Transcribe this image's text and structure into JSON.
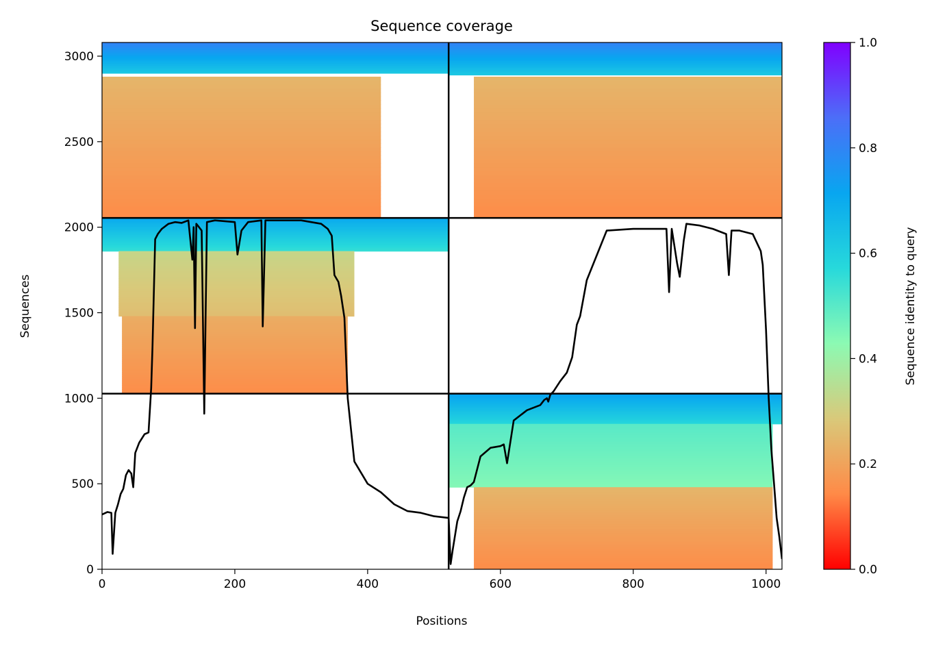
{
  "chart_data": {
    "type": "heatmap",
    "title": "Sequence coverage",
    "xlabel": "Positions",
    "ylabel": "Sequences",
    "xlim": [
      0,
      1024
    ],
    "ylim": [
      0,
      3080
    ],
    "x_ticks": [
      0,
      200,
      400,
      600,
      800,
      1000
    ],
    "y_ticks": [
      0,
      500,
      1000,
      1500,
      2000,
      2500,
      3000
    ],
    "grid": false,
    "block_dividers": {
      "x": [
        522
      ],
      "y": [
        1027,
        2054
      ]
    },
    "coverage_blocks": [
      {
        "x_range": [
          0,
          522
        ],
        "y_range": [
          2054,
          3080
        ],
        "layers": [
          {
            "x": [
              0,
              522
            ],
            "y": [
              2900,
              3080
            ],
            "identity": [
              0.62,
              0.8
            ]
          },
          {
            "x": [
              0,
              420
            ],
            "y": [
              2054,
              2880
            ],
            "identity": [
              0.15,
              0.24
            ]
          }
        ]
      },
      {
        "x_range": [
          522,
          1024
        ],
        "y_range": [
          2054,
          3080
        ],
        "layers": [
          {
            "x": [
              522,
              1024
            ],
            "y": [
              2890,
              3080
            ],
            "identity": [
              0.62,
              0.8
            ]
          },
          {
            "x": [
              560,
              1024
            ],
            "y": [
              2054,
              2880
            ],
            "identity": [
              0.15,
              0.24
            ]
          }
        ]
      },
      {
        "x_range": [
          0,
          522
        ],
        "y_range": [
          1027,
          2054
        ],
        "layers": [
          {
            "x": [
              0,
              522
            ],
            "y": [
              1860,
              2054
            ],
            "identity": [
              0.55,
              0.7
            ]
          },
          {
            "x": [
              25,
              380
            ],
            "y": [
              1480,
              1860
            ],
            "identity": [
              0.26,
              0.32
            ]
          },
          {
            "x": [
              30,
              370
            ],
            "y": [
              1027,
              1480
            ],
            "identity": [
              0.15,
              0.22
            ]
          }
        ]
      },
      {
        "x_range": [
          522,
          1024
        ],
        "y_range": [
          0,
          1027
        ],
        "layers": [
          {
            "x": [
              522,
              1024
            ],
            "y": [
              850,
              1027
            ],
            "identity": [
              0.58,
              0.72
            ]
          },
          {
            "x": [
              522,
              1010
            ],
            "y": [
              480,
              850
            ],
            "identity": [
              0.44,
              0.5
            ]
          },
          {
            "x": [
              560,
              1010
            ],
            "y": [
              0,
              480
            ],
            "identity": [
              0.15,
              0.24
            ]
          }
        ]
      }
    ],
    "coverage_line": {
      "x": [
        0,
        8,
        14,
        16,
        20,
        24,
        28,
        32,
        36,
        40,
        44,
        47,
        50,
        56,
        64,
        70,
        74,
        76,
        80,
        84,
        90,
        100,
        110,
        120,
        130,
        136,
        138,
        140,
        142,
        146,
        150,
        154,
        158,
        170,
        200,
        204,
        210,
        220,
        240,
        242,
        246,
        260,
        300,
        330,
        340,
        346,
        350,
        356,
        360,
        365,
        370,
        380,
        400,
        420,
        440,
        460,
        480,
        500,
        522,
        525,
        528,
        535,
        540,
        545,
        550,
        555,
        560,
        570,
        585,
        600,
        605,
        610,
        620,
        640,
        660,
        666,
        670,
        672,
        675,
        680,
        690,
        700,
        708,
        715,
        720,
        730,
        760,
        800,
        850,
        854,
        858,
        866,
        870,
        876,
        880,
        900,
        920,
        940,
        944,
        948,
        960,
        980,
        992,
        995,
        1000,
        1004,
        1008,
        1012,
        1016,
        1020,
        1024
      ],
      "y": [
        320,
        335,
        330,
        90,
        330,
        380,
        440,
        470,
        550,
        580,
        560,
        480,
        680,
        740,
        790,
        800,
        1060,
        1300,
        1930,
        1960,
        1990,
        2020,
        2030,
        2025,
        2040,
        1810,
        2000,
        1410,
        2020,
        2000,
        1980,
        910,
        2030,
        2040,
        2030,
        1840,
        1980,
        2030,
        2040,
        1420,
        2040,
        2040,
        2040,
        2020,
        1990,
        1950,
        1720,
        1680,
        1600,
        1470,
        1000,
        630,
        500,
        450,
        380,
        340,
        330,
        310,
        300,
        30,
        110,
        280,
        340,
        420,
        480,
        490,
        510,
        660,
        710,
        720,
        730,
        620,
        870,
        930,
        960,
        990,
        1000,
        980,
        1020,
        1040,
        1100,
        1150,
        1240,
        1430,
        1480,
        1690,
        1980,
        1990,
        1990,
        1620,
        1990,
        1790,
        1710,
        1920,
        2020,
        2010,
        1990,
        1960,
        1720,
        1980,
        1980,
        1960,
        1860,
        1780,
        1400,
        1000,
        700,
        500,
        300,
        190,
        60
      ]
    },
    "colorbar": {
      "label": "Sequence identity to query",
      "ticks": [
        "0.0",
        "0.2",
        "0.4",
        "0.6",
        "0.8",
        "1.0"
      ],
      "range": [
        0,
        1
      ],
      "colormap": "rainbow_r",
      "colors": [
        "#ff0000",
        "#ff8a47",
        "#d9c97a",
        "#8cfab3",
        "#27d9db",
        "#08a6f0",
        "#4c6ef8",
        "#8000ff"
      ]
    }
  }
}
